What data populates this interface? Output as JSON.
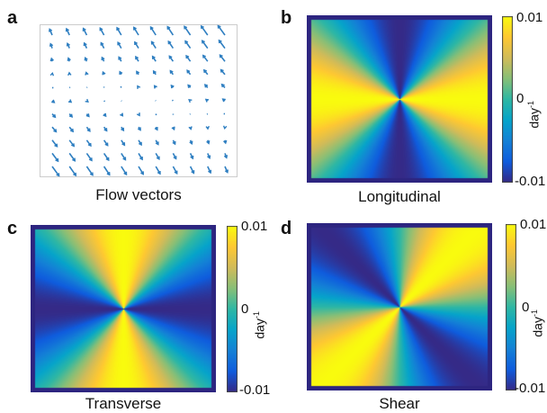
{
  "panels": {
    "a": {
      "letter": "a",
      "caption": "Flow vectors"
    },
    "b": {
      "letter": "b",
      "caption": "Longitudinal"
    },
    "c": {
      "letter": "c",
      "caption": "Transverse"
    },
    "d": {
      "letter": "d",
      "caption": "Shear"
    }
  },
  "colorbar": {
    "max_label": "0.01",
    "mid_label": "0",
    "min_label": "-0.01",
    "unit_base": "day",
    "unit_exp": "-1"
  },
  "colors": {
    "colormap": [
      "#352a87",
      "#0f5cdd",
      "#1481d6",
      "#06a4ca",
      "#2eb7a4",
      "#87bf77",
      "#d1bb59",
      "#fec832",
      "#f9fb0e"
    ],
    "vector": "#2f7fc1",
    "frame": "#2d2580",
    "axes_box": "#cccccc"
  }
}
